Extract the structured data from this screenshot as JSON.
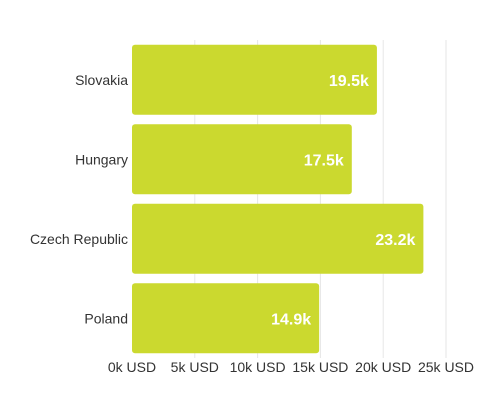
{
  "chart_data": {
    "type": "bar",
    "orientation": "horizontal",
    "categories": [
      "Slovakia",
      "Hungary",
      "Czech Republic",
      "Poland"
    ],
    "values": [
      19.5,
      17.5,
      23.2,
      14.9
    ],
    "value_labels": [
      "19.5k",
      "17.5k",
      "23.2k",
      "14.9k"
    ],
    "unit": "thousand USD",
    "xlim": [
      0,
      25
    ],
    "xticks": [
      0,
      5,
      10,
      15,
      20,
      25
    ],
    "xtick_labels": [
      "0k USD",
      "5k USD",
      "10k USD",
      "15k USD",
      "20k USD",
      "25k USD"
    ],
    "grid": "vertical",
    "title": "",
    "xlabel": "",
    "ylabel": "",
    "bar_color": "#cbd92f"
  }
}
